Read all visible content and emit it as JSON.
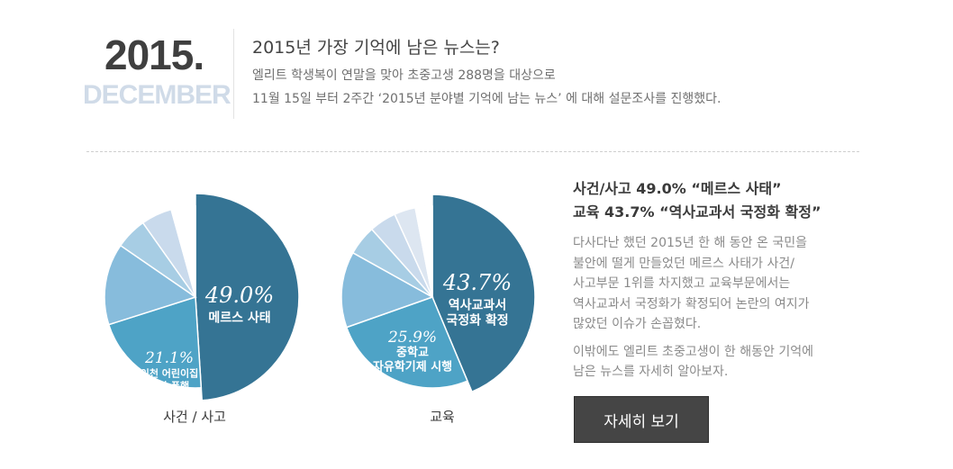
{
  "header": {
    "year": "2015.",
    "month": "DECEMBER",
    "headline": "2015년 가장 기억에 남은 뉴스는?",
    "intro_lines": [
      "엘리트 학생복이 연말을 맞아 초중고생 288명을 대상으로",
      "11월 15일 부터 2주간 ‘2015년 분야별 기억에 남는 뉴스’ 에 대해 설문조사를 진행했다."
    ]
  },
  "summary": {
    "lines": [
      "사건/사고 49.0% “메르스 사태”",
      "교육 43.7% “역사교과서 국정화 확정”"
    ]
  },
  "description": {
    "paragraph1": [
      "다사다난 했던 2015년 한 해 동안 온 국민을",
      "불안에 떨게 만들었던 메르스 사태가 사건/",
      "사고부문 1위를 차지했고 교육부문에서는",
      "역사교과서 국정화가 확정되어 논란의 여지가",
      "많았던 이슈가 손꼽혔다."
    ],
    "paragraph2": [
      "이밖에도 엘리트 초중고생이 한 해동안 기억에",
      "남은 뉴스를 자세히 알아보자."
    ]
  },
  "button": {
    "label": "자세히 보기"
  },
  "chart_data": [
    {
      "type": "pie",
      "title": "사건 / 사고",
      "slices": [
        {
          "value": 49.0,
          "percent_label": "49.0%",
          "label": "메르스 사태",
          "color": "#357494",
          "labeled": true
        },
        {
          "value": 21.1,
          "percent_label": "21.1%",
          "label": "인천 어린이집\n원아 폭행",
          "color": "#4ea3c6",
          "labeled": true
        },
        {
          "value": 14.5,
          "color": "#87bcdc",
          "labeled": false
        },
        {
          "value": 5.6,
          "color": "#a7cde4",
          "labeled": false
        },
        {
          "value": 5.5,
          "color": "#c9daec",
          "labeled": false
        },
        {
          "value": 4.3,
          "color": "#ffffff",
          "labeled": false
        }
      ]
    },
    {
      "type": "pie",
      "title": "교육",
      "slices": [
        {
          "value": 43.7,
          "percent_label": "43.7%",
          "label": "역사교과서\n국정화 확정",
          "color": "#357494",
          "labeled": true
        },
        {
          "value": 25.9,
          "percent_label": "25.9%",
          "label": "중학교\n자유학기제 시행",
          "color": "#4ea3c6",
          "labeled": true
        },
        {
          "value": 13.5,
          "color": "#87bcdc",
          "labeled": false
        },
        {
          "value": 5.3,
          "color": "#a7cde4",
          "labeled": false
        },
        {
          "value": 4.8,
          "color": "#c9daec",
          "labeled": false
        },
        {
          "value": 3.8,
          "color": "#dde6f1",
          "labeled": false
        },
        {
          "value": 3.0,
          "color": "#ffffff",
          "labeled": false
        }
      ]
    }
  ]
}
